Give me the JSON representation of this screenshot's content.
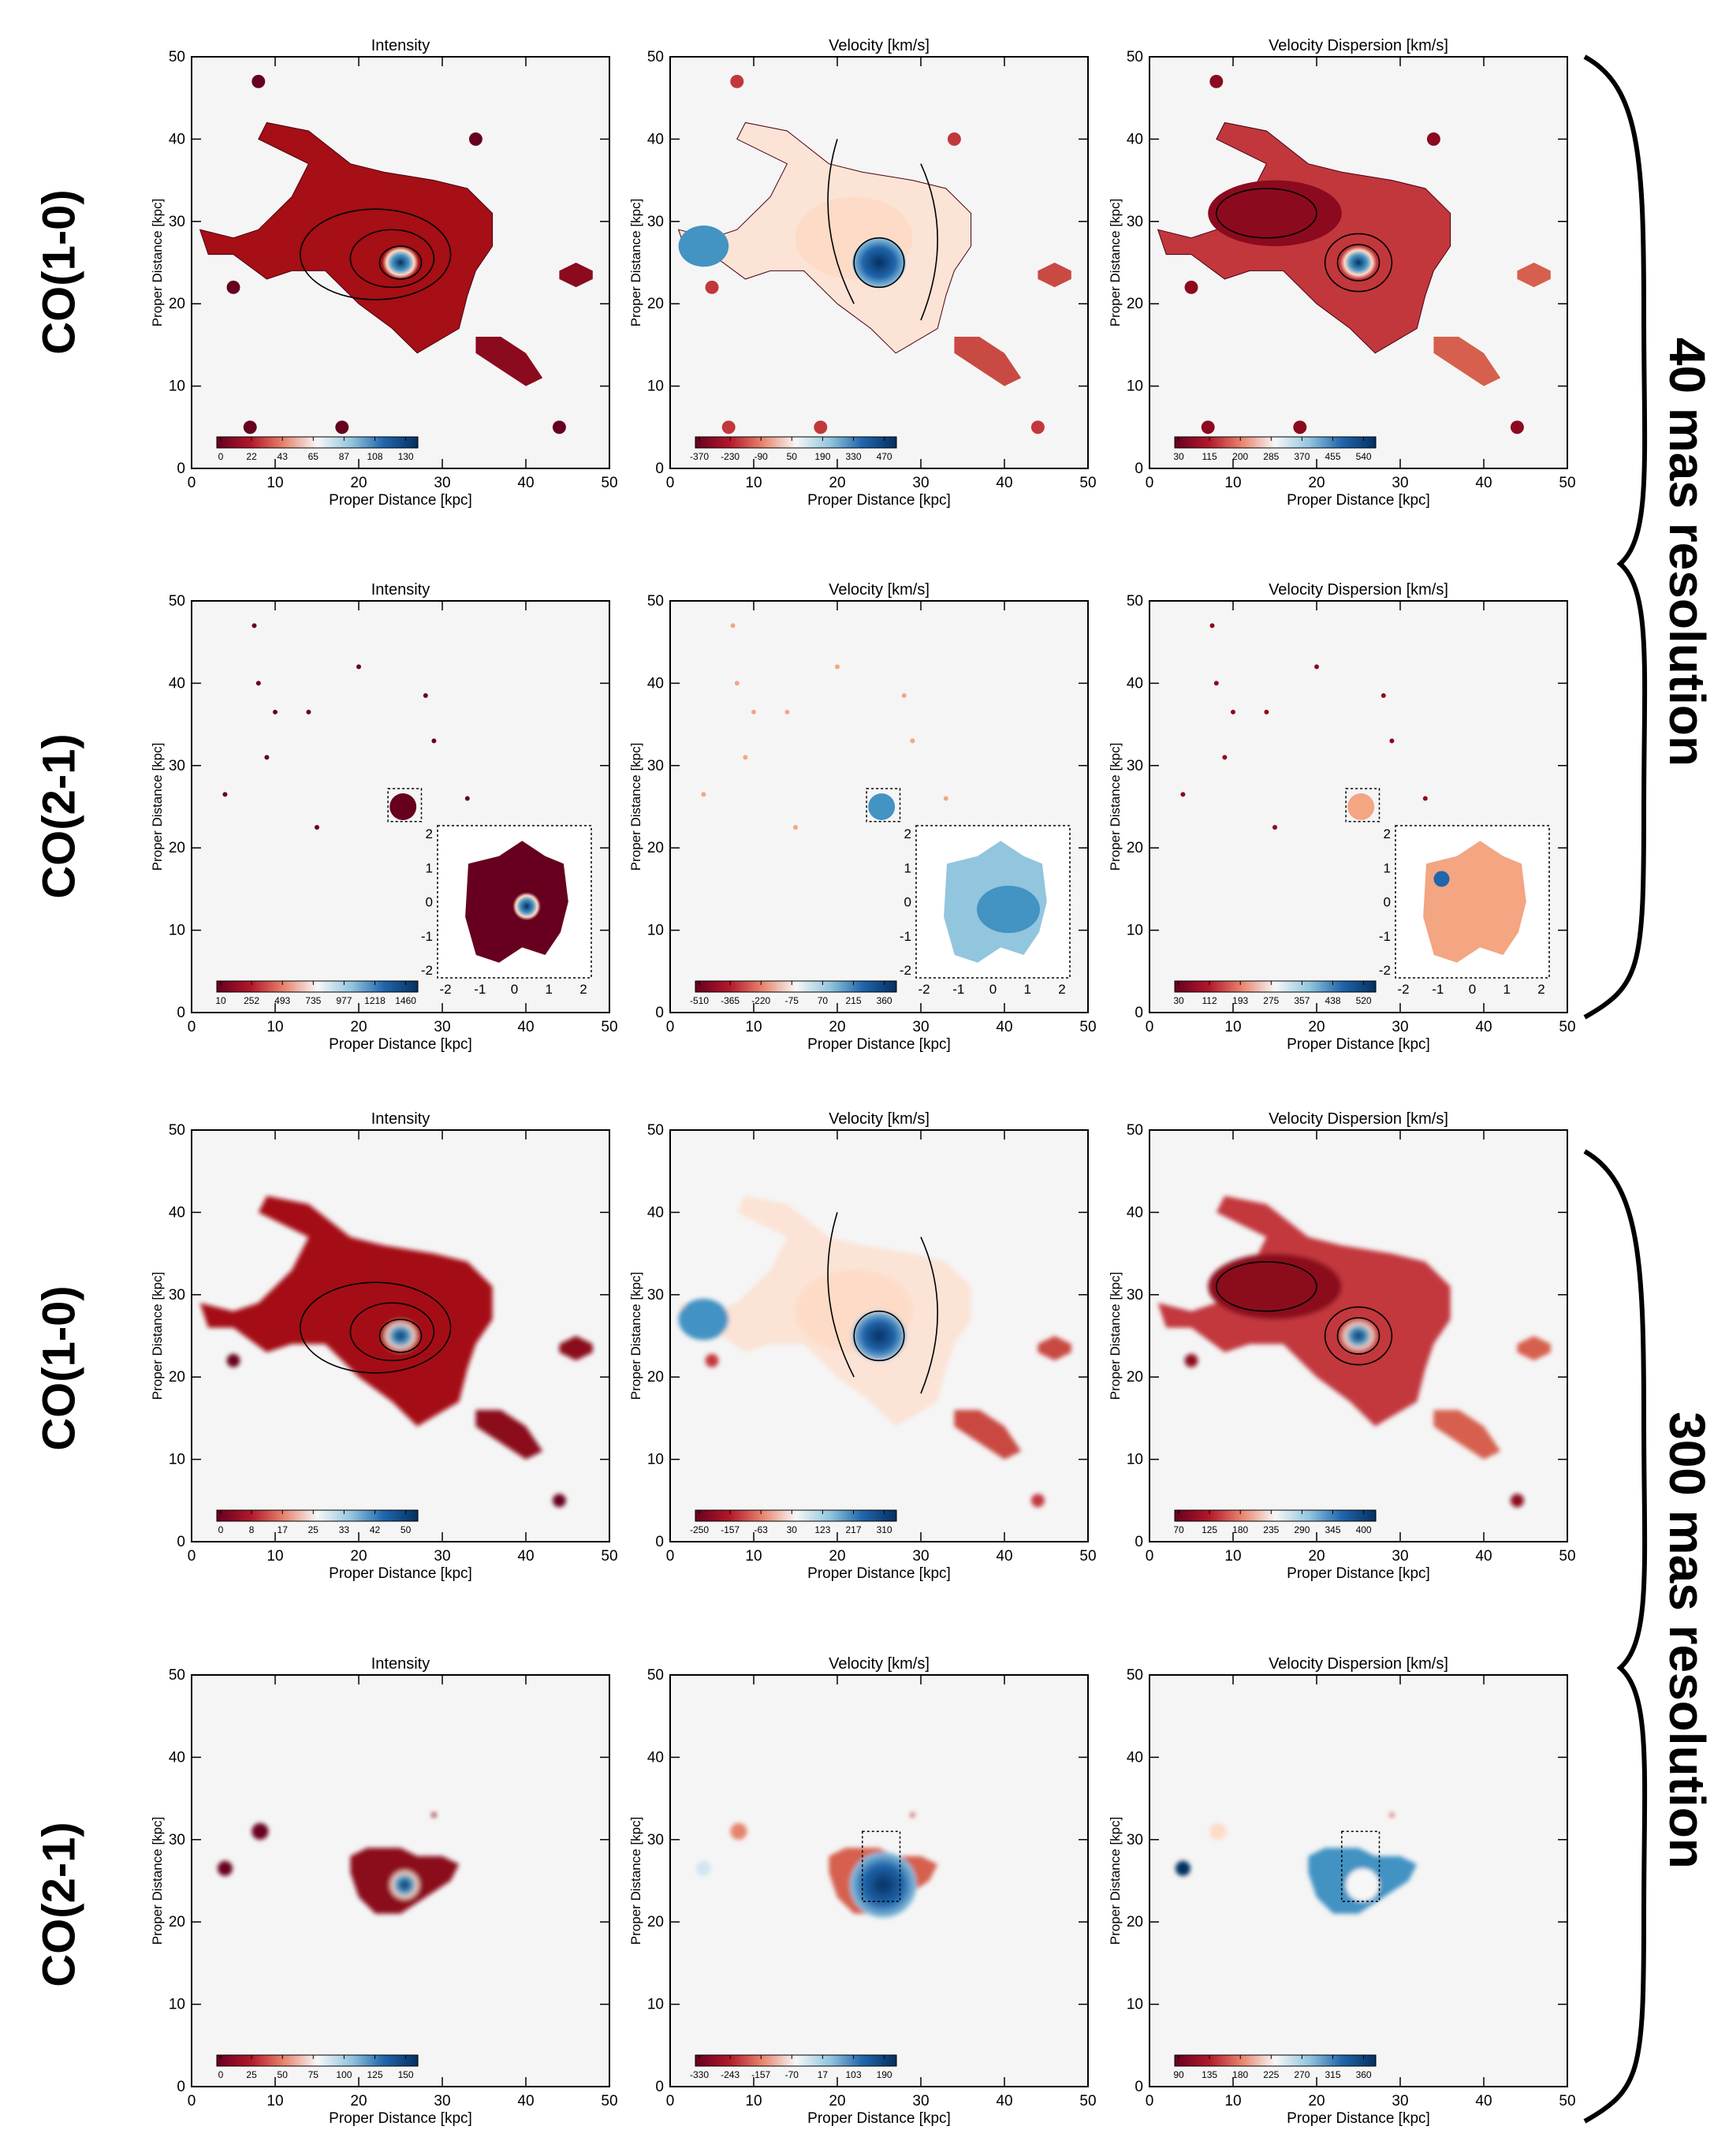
{
  "figure": {
    "rows": [
      {
        "id": "r1",
        "label": "CO(1-0)",
        "smooth": false,
        "inset": false
      },
      {
        "id": "r2",
        "label": "CO(2-1)",
        "smooth": false,
        "inset": true
      },
      {
        "id": "r3",
        "label": "CO(1-0)",
        "smooth": true,
        "inset": false
      },
      {
        "id": "r4",
        "label": "CO(2-1)",
        "smooth": true,
        "inset": false
      }
    ],
    "resolution_labels": [
      "40 mas resolution",
      "300 mas resolution"
    ],
    "column_titles": [
      "Intensity",
      "Velocity [km/s]",
      "Velocity Dispersion [km/s]"
    ],
    "axis_xlabel": "Proper Distance [kpc]",
    "axis_ylabel": "Proper Distance [kpc]",
    "colors": {
      "background": "#f5f5f5",
      "dark_red": "#67001f",
      "red": "#c2373c",
      "light": "#f7f7f7",
      "light_blue": "#92c5de",
      "dark_blue": "#053061"
    }
  },
  "chart_data": [
    {
      "type": "heatmap",
      "row": 1,
      "column": 1,
      "title": "Intensity",
      "xlabel": "Proper Distance [kpc]",
      "ylabel": "Proper Distance [kpc]",
      "xlim": [
        0,
        50
      ],
      "ylim": [
        0,
        50
      ],
      "xticks": [
        "0",
        "10",
        "20",
        "30",
        "40",
        "50"
      ],
      "yticks": [
        "0",
        "10",
        "20",
        "30",
        "40",
        "50"
      ],
      "colorbar_ticks": [
        "0",
        "22",
        "43",
        "65",
        "87",
        "108",
        "130"
      ],
      "colorbar_range": [
        0,
        130
      ]
    },
    {
      "type": "heatmap",
      "row": 1,
      "column": 2,
      "title": "Velocity [km/s]",
      "xlabel": "Proper Distance [kpc]",
      "ylabel": "Proper Distance [kpc]",
      "xlim": [
        0,
        50
      ],
      "ylim": [
        0,
        50
      ],
      "xticks": [
        "0",
        "10",
        "20",
        "30",
        "40",
        "50"
      ],
      "yticks": [
        "0",
        "10",
        "20",
        "30",
        "40",
        "50"
      ],
      "colorbar_ticks": [
        "-370",
        "-230",
        "-90",
        "50",
        "190",
        "330",
        "470"
      ],
      "colorbar_range": [
        -370,
        470
      ]
    },
    {
      "type": "heatmap",
      "row": 1,
      "column": 3,
      "title": "Velocity Dispersion [km/s]",
      "xlabel": "Proper Distance [kpc]",
      "ylabel": "Proper Distance [kpc]",
      "xlim": [
        0,
        50
      ],
      "ylim": [
        0,
        50
      ],
      "xticks": [
        "0",
        "10",
        "20",
        "30",
        "40",
        "50"
      ],
      "yticks": [
        "0",
        "10",
        "20",
        "30",
        "40",
        "50"
      ],
      "colorbar_ticks": [
        "30",
        "115",
        "200",
        "285",
        "370",
        "455",
        "540"
      ],
      "colorbar_range": [
        30,
        540
      ]
    },
    {
      "type": "heatmap",
      "row": 2,
      "column": 1,
      "title": "Intensity",
      "xlabel": "Proper Distance [kpc]",
      "ylabel": "Proper Distance [kpc]",
      "xlim": [
        0,
        50
      ],
      "ylim": [
        0,
        50
      ],
      "xticks": [
        "0",
        "10",
        "20",
        "30",
        "40",
        "50"
      ],
      "yticks": [
        "0",
        "10",
        "20",
        "30",
        "40",
        "50"
      ],
      "colorbar_ticks": [
        "10",
        "252",
        "493",
        "735",
        "977",
        "1218",
        "1460"
      ],
      "colorbar_range": [
        10,
        1460
      ],
      "inset_ticks": [
        "-2",
        "-1",
        "0",
        "1",
        "2"
      ]
    },
    {
      "type": "heatmap",
      "row": 2,
      "column": 2,
      "title": "Velocity [km/s]",
      "xlabel": "Proper Distance [kpc]",
      "ylabel": "Proper Distance [kpc]",
      "xlim": [
        0,
        50
      ],
      "ylim": [
        0,
        50
      ],
      "xticks": [
        "0",
        "10",
        "20",
        "30",
        "40",
        "50"
      ],
      "yticks": [
        "0",
        "10",
        "20",
        "30",
        "40",
        "50"
      ],
      "colorbar_ticks": [
        "-510",
        "-365",
        "-220",
        "-75",
        "70",
        "215",
        "360"
      ],
      "colorbar_range": [
        -510,
        360
      ],
      "inset_ticks": [
        "-2",
        "-1",
        "0",
        "1",
        "2"
      ]
    },
    {
      "type": "heatmap",
      "row": 2,
      "column": 3,
      "title": "Velocity Dispersion [km/s]",
      "xlabel": "Proper Distance [kpc]",
      "ylabel": "Proper Distance [kpc]",
      "xlim": [
        0,
        50
      ],
      "ylim": [
        0,
        50
      ],
      "xticks": [
        "0",
        "10",
        "20",
        "30",
        "40",
        "50"
      ],
      "yticks": [
        "0",
        "10",
        "20",
        "30",
        "40",
        "50"
      ],
      "colorbar_ticks": [
        "30",
        "112",
        "193",
        "275",
        "357",
        "438",
        "520"
      ],
      "colorbar_range": [
        30,
        520
      ],
      "inset_ticks": [
        "-2",
        "-1",
        "0",
        "1",
        "2"
      ]
    },
    {
      "type": "heatmap",
      "row": 3,
      "column": 1,
      "title": "Intensity",
      "xlabel": "Proper Distance [kpc]",
      "ylabel": "Proper Distance [kpc]",
      "xlim": [
        0,
        50
      ],
      "ylim": [
        0,
        50
      ],
      "xticks": [
        "0",
        "10",
        "20",
        "30",
        "40",
        "50"
      ],
      "yticks": [
        "0",
        "10",
        "20",
        "30",
        "40",
        "50"
      ],
      "colorbar_ticks": [
        "0",
        "8",
        "17",
        "25",
        "33",
        "42",
        "50"
      ],
      "colorbar_range": [
        0,
        50
      ]
    },
    {
      "type": "heatmap",
      "row": 3,
      "column": 2,
      "title": "Velocity [km/s]",
      "xlabel": "Proper Distance [kpc]",
      "ylabel": "Proper Distance [kpc]",
      "xlim": [
        0,
        50
      ],
      "ylim": [
        0,
        50
      ],
      "xticks": [
        "0",
        "10",
        "20",
        "30",
        "40",
        "50"
      ],
      "yticks": [
        "0",
        "10",
        "20",
        "30",
        "40",
        "50"
      ],
      "colorbar_ticks": [
        "-250",
        "-157",
        "-63",
        "30",
        "123",
        "217",
        "310"
      ],
      "colorbar_range": [
        -250,
        310
      ]
    },
    {
      "type": "heatmap",
      "row": 3,
      "column": 3,
      "title": "Velocity Dispersion [km/s]",
      "xlabel": "Proper Distance [kpc]",
      "ylabel": "Proper Distance [kpc]",
      "xlim": [
        0,
        50
      ],
      "ylim": [
        0,
        50
      ],
      "xticks": [
        "0",
        "10",
        "20",
        "30",
        "40",
        "50"
      ],
      "yticks": [
        "0",
        "10",
        "20",
        "30",
        "40",
        "50"
      ],
      "colorbar_ticks": [
        "70",
        "125",
        "180",
        "235",
        "290",
        "345",
        "400"
      ],
      "colorbar_range": [
        70,
        400
      ]
    },
    {
      "type": "heatmap",
      "row": 4,
      "column": 1,
      "title": "Intensity",
      "xlabel": "Proper Distance [kpc]",
      "ylabel": "Proper Distance [kpc]",
      "xlim": [
        0,
        50
      ],
      "ylim": [
        0,
        50
      ],
      "xticks": [
        "0",
        "10",
        "20",
        "30",
        "40",
        "50"
      ],
      "yticks": [
        "0",
        "10",
        "20",
        "30",
        "40",
        "50"
      ],
      "colorbar_ticks": [
        "0",
        "25",
        "50",
        "75",
        "100",
        "125",
        "150"
      ],
      "colorbar_range": [
        0,
        150
      ]
    },
    {
      "type": "heatmap",
      "row": 4,
      "column": 2,
      "title": "Velocity [km/s]",
      "xlabel": "Proper Distance [kpc]",
      "ylabel": "Proper Distance [kpc]",
      "xlim": [
        0,
        50
      ],
      "ylim": [
        0,
        50
      ],
      "xticks": [
        "0",
        "10",
        "20",
        "30",
        "40",
        "50"
      ],
      "yticks": [
        "0",
        "10",
        "20",
        "30",
        "40",
        "50"
      ],
      "colorbar_ticks": [
        "-330",
        "-243",
        "-157",
        "-70",
        "17",
        "103",
        "190"
      ],
      "colorbar_range": [
        -330,
        190
      ]
    },
    {
      "type": "heatmap",
      "row": 4,
      "column": 3,
      "title": "Velocity Dispersion [km/s]",
      "xlabel": "Proper Distance [kpc]",
      "ylabel": "Proper Distance [kpc]",
      "xlim": [
        0,
        50
      ],
      "ylim": [
        0,
        50
      ],
      "xticks": [
        "0",
        "10",
        "20",
        "30",
        "40",
        "50"
      ],
      "yticks": [
        "0",
        "10",
        "20",
        "30",
        "40",
        "50"
      ],
      "colorbar_ticks": [
        "90",
        "135",
        "180",
        "225",
        "270",
        "315",
        "360"
      ],
      "colorbar_range": [
        90,
        360
      ]
    }
  ]
}
